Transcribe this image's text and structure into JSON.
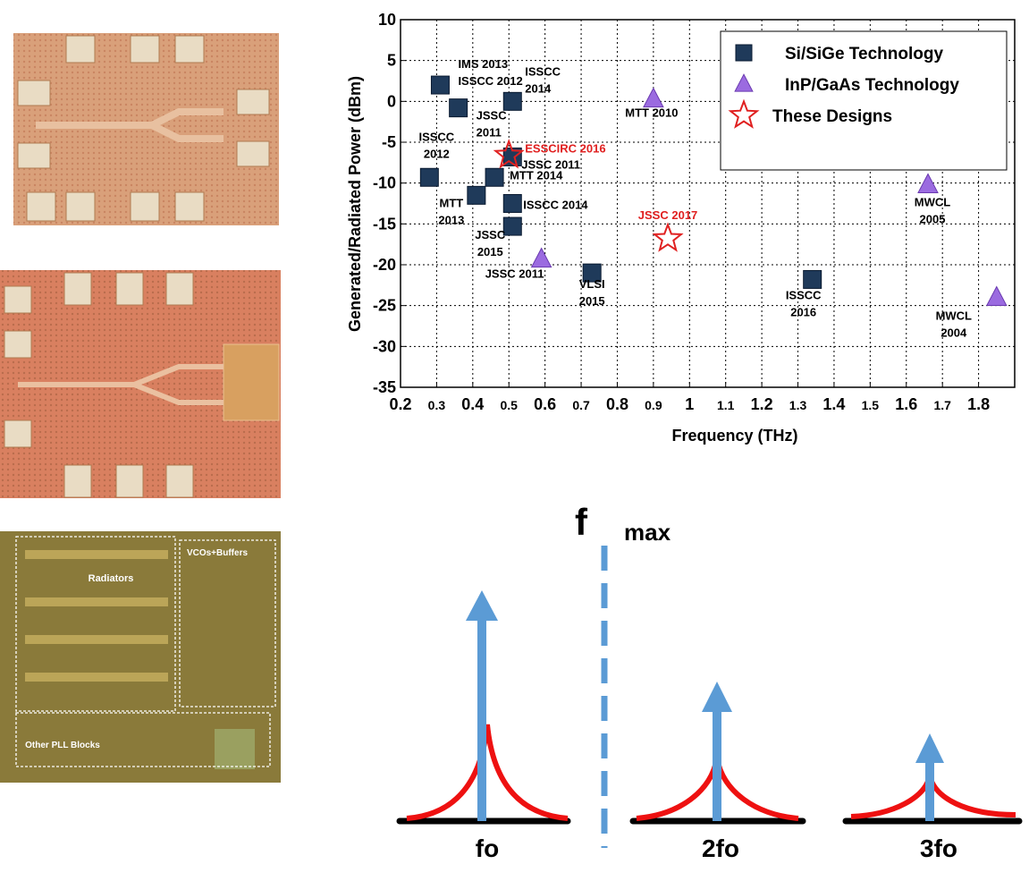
{
  "chart_data": {
    "type": "scatter",
    "xlabel": "Frequency (THz)",
    "ylabel": "Generated/Radiated Power (dBm)",
    "xlim": [
      0.2,
      1.9
    ],
    "ylim": [
      -35,
      10
    ],
    "xticks": [
      0.2,
      0.3,
      0.4,
      0.5,
      0.6,
      0.7,
      0.8,
      0.9,
      1,
      1.1,
      1.2,
      1.3,
      1.4,
      1.5,
      1.6,
      1.7,
      1.8
    ],
    "yticks": [
      -35,
      -30,
      -25,
      -20,
      -15,
      -10,
      -5,
      0,
      5,
      10
    ],
    "grid": true,
    "legend": "upper right",
    "series": [
      {
        "name": "Si/SiGe Technology",
        "color": "#1f3a5a",
        "marker": "square",
        "x": [
          0.31,
          0.36,
          0.51,
          0.28,
          0.41,
          0.46,
          0.51,
          0.51,
          0.73,
          1.34,
          0.51
        ],
        "values": [
          2,
          -0.8,
          0,
          -9.3,
          -11.5,
          -9.3,
          -12.5,
          -15.3,
          -21,
          -21.8,
          -6.8
        ],
        "point_labels": [
          [
            "IMS 2013",
            "ISSCC 2012"
          ],
          [
            "JSSC",
            "2011"
          ],
          [
            "ISSCC",
            "2014"
          ],
          [
            "ISSCC",
            "2012"
          ],
          [
            "MTT",
            "2013"
          ],
          [
            "MTT 2014"
          ],
          [
            "ISSCC 2014"
          ],
          [
            "JSSC",
            "2015"
          ],
          [
            "VLSI",
            "2015"
          ],
          [
            "ISSCC",
            "2016"
          ],
          [
            "JSSC 2011"
          ]
        ]
      },
      {
        "name": "InP/GaAs Technology",
        "color": "#9b6be0",
        "marker": "triangle",
        "x": [
          0.9,
          0.59,
          1.66,
          1.85
        ],
        "values": [
          0.3,
          -19.3,
          -10.2,
          -24
        ],
        "point_labels": [
          [
            "MTT 2010"
          ],
          [
            "JSSC 2011"
          ],
          [
            "MWCL",
            "2005"
          ],
          [
            "MWCL",
            "2004"
          ]
        ]
      },
      {
        "name": "These Designs",
        "color": "#e02020",
        "marker": "star",
        "x": [
          0.5,
          0.94
        ],
        "values": [
          -6.6,
          -16.8
        ],
        "point_labels": [
          [
            "ESSCIRC 2016"
          ],
          [
            "JSSC 2017"
          ]
        ]
      }
    ]
  },
  "photos": {
    "labels": [
      "Radiators",
      "VCOs+Buffers",
      "Other PLL Blocks"
    ]
  },
  "diagram": {
    "fmax": [
      "f",
      "max"
    ],
    "harmonics": [
      "fo",
      "2fo",
      "3fo"
    ]
  }
}
